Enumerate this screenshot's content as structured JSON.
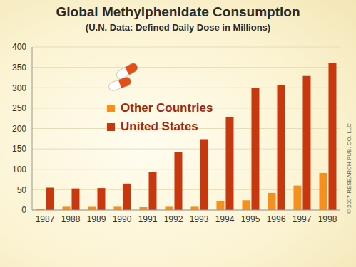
{
  "chart_data": {
    "type": "bar",
    "title": "Global Methylphenidate Consumption",
    "subtitle": "(U.N. Data: Defined Daily Dose in Millions)",
    "annotation": "© 2007 RESEARCH PUB. CO. LLC",
    "categories": [
      "1987",
      "1988",
      "1989",
      "1990",
      "1991",
      "1992",
      "1993",
      "1994",
      "1995",
      "1996",
      "1997",
      "1998"
    ],
    "series": [
      {
        "name": "Other Countries",
        "color": "#f5901e",
        "values": [
          3,
          8,
          8,
          8,
          7,
          8,
          8,
          22,
          24,
          42,
          60,
          91
        ]
      },
      {
        "name": "United States",
        "color": "#c8380f",
        "values": [
          55,
          53,
          54,
          65,
          93,
          142,
          174,
          228,
          299,
          307,
          329,
          361
        ]
      }
    ],
    "ylim": [
      0,
      400
    ],
    "yticks": [
      0,
      50,
      100,
      150,
      200,
      250,
      300,
      350,
      400
    ],
    "grid": true,
    "legend": "left"
  }
}
